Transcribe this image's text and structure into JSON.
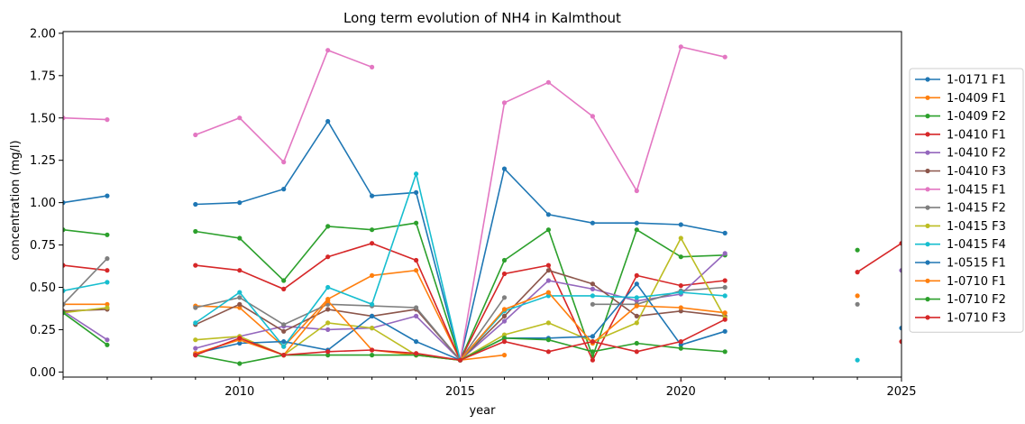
{
  "chart_data": {
    "type": "line",
    "title": "Long term evolution of NH4 in Kalmthout",
    "xlabel": "year",
    "ylabel": "concentration (mg/l)",
    "xlim": [
      2006,
      2025
    ],
    "ylim": [
      -0.03,
      2.01
    ],
    "x_ticks": [
      2010,
      2015,
      2020,
      2025
    ],
    "y_ticks": [
      "0.00",
      "0.25",
      "0.50",
      "0.75",
      "1.00",
      "1.25",
      "1.50",
      "1.75",
      "2.00"
    ],
    "y_tick_values": [
      0,
      0.25,
      0.5,
      0.75,
      1.0,
      1.25,
      1.5,
      1.75,
      2.0
    ],
    "grid": false,
    "legend_position": "right",
    "series": [
      {
        "name": "1-0171 F1",
        "color": "#1f77b4",
        "x": [
          2006,
          2007,
          2009,
          2010,
          2011,
          2012,
          2013,
          2014,
          2015,
          2016,
          2017,
          2018,
          2019,
          2020,
          2021
        ],
        "y": [
          1.0,
          1.04,
          0.99,
          1.0,
          1.08,
          1.48,
          1.04,
          1.06,
          0.07,
          1.2,
          0.93,
          0.88,
          0.88,
          0.87,
          0.82
        ]
      },
      {
        "name": "1-0409 F1",
        "color": "#ff7f0e",
        "x": [
          2006,
          2007,
          2009,
          2010,
          2011,
          2012,
          2013,
          2014,
          2015,
          2016
        ],
        "y": [
          0.4,
          0.4,
          0.39,
          0.38,
          0.15,
          0.43,
          0.57,
          0.6,
          0.07,
          0.1
        ]
      },
      {
        "name": "1-0409 F2",
        "color": "#2ca02c",
        "x": [
          2006,
          2007,
          2009,
          2010,
          2011,
          2012,
          2013,
          2014,
          2015,
          2016,
          2017,
          2018,
          2019,
          2020,
          2021,
          2024
        ],
        "y": [
          0.84,
          0.81,
          0.83,
          0.79,
          0.54,
          0.86,
          0.84,
          0.88,
          0.07,
          0.66,
          0.84,
          0.09,
          0.84,
          0.68,
          0.69,
          0.72
        ]
      },
      {
        "name": "1-0410 F1",
        "color": "#d62728",
        "x": [
          2006,
          2007,
          2009,
          2010,
          2011,
          2012,
          2013,
          2014,
          2015,
          2016,
          2017,
          2018,
          2019,
          2020,
          2021,
          2024,
          2025
        ],
        "y": [
          0.63,
          0.6,
          0.63,
          0.6,
          0.49,
          0.68,
          0.76,
          0.66,
          0.07,
          0.58,
          0.63,
          0.07,
          0.57,
          0.51,
          0.54,
          0.59,
          0.76
        ]
      },
      {
        "name": "1-0410 F2",
        "color": "#9467bd",
        "x": [
          2006,
          2007,
          2009,
          2010,
          2011,
          2012,
          2013,
          2014,
          2015,
          2016,
          2017,
          2018,
          2019,
          2020,
          2021,
          2025
        ],
        "y": [
          0.36,
          0.19,
          0.14,
          0.21,
          0.27,
          0.25,
          0.26,
          0.33,
          0.07,
          0.3,
          0.54,
          0.49,
          0.42,
          0.46,
          0.7,
          0.6
        ]
      },
      {
        "name": "1-0410 F3",
        "color": "#8c564b",
        "x": [
          2006,
          2007,
          2009,
          2010,
          2011,
          2012,
          2013,
          2014,
          2015,
          2016,
          2017,
          2018,
          2019,
          2020,
          2021
        ],
        "y": [
          0.36,
          0.37,
          0.28,
          0.4,
          0.24,
          0.37,
          0.33,
          0.37,
          0.07,
          0.33,
          0.6,
          0.52,
          0.33,
          0.36,
          0.33
        ]
      },
      {
        "name": "1-0415 F1",
        "color": "#e377c2",
        "x": [
          2006,
          2007,
          2009,
          2010,
          2011,
          2012,
          2013,
          2015,
          2016,
          2017,
          2018,
          2019,
          2020,
          2021
        ],
        "y": [
          1.5,
          1.49,
          1.4,
          1.5,
          1.24,
          1.9,
          1.8,
          0.07,
          1.59,
          1.71,
          1.51,
          1.07,
          1.92,
          1.86
        ]
      },
      {
        "name": "1-0415 F2",
        "color": "#7f7f7f",
        "x": [
          2006,
          2007,
          2009,
          2010,
          2011,
          2012,
          2013,
          2014,
          2015,
          2016,
          2018,
          2019,
          2020,
          2021,
          2024
        ],
        "y": [
          0.4,
          0.67,
          0.38,
          0.44,
          0.28,
          0.4,
          0.39,
          0.38,
          0.07,
          0.44,
          0.4,
          0.4,
          0.48,
          0.5,
          0.4
        ]
      },
      {
        "name": "1-0415 F3",
        "color": "#bcbd22",
        "x": [
          2006,
          2007,
          2009,
          2010,
          2011,
          2012,
          2013,
          2014,
          2015,
          2016,
          2017,
          2018,
          2019,
          2020,
          2021
        ],
        "y": [
          0.35,
          0.38,
          0.19,
          0.21,
          0.1,
          0.29,
          0.26,
          0.1,
          0.07,
          0.22,
          0.29,
          0.18,
          0.29,
          0.79,
          0.32
        ]
      },
      {
        "name": "1-0415 F4",
        "color": "#17becf",
        "x": [
          2006,
          2007,
          2009,
          2010,
          2011,
          2012,
          2013,
          2014,
          2015,
          2016,
          2017,
          2018,
          2019,
          2020,
          2021,
          2024
        ],
        "y": [
          0.48,
          0.53,
          0.29,
          0.47,
          0.15,
          0.5,
          0.4,
          1.17,
          0.07,
          0.36,
          0.45,
          0.45,
          0.44,
          0.47,
          0.45,
          0.07
        ]
      },
      {
        "name": "1-0515 F1",
        "color": "#1f77b4",
        "x": [
          2009,
          2010,
          2011,
          2012,
          2013,
          2014,
          2015,
          2016,
          2017,
          2018,
          2019,
          2020,
          2021,
          2025
        ],
        "y": [
          0.11,
          0.17,
          0.18,
          0.13,
          0.33,
          0.18,
          0.07,
          0.2,
          0.2,
          0.21,
          0.52,
          0.16,
          0.24,
          0.26
        ]
      },
      {
        "name": "1-0710 F1",
        "color": "#ff7f0e",
        "x": [
          2009,
          2010,
          2011,
          2012,
          2013,
          2014,
          2015,
          2016,
          2017,
          2018,
          2019,
          2020,
          2021,
          2024
        ],
        "y": [
          0.11,
          0.19,
          0.1,
          0.42,
          0.13,
          0.1,
          0.07,
          0.37,
          0.47,
          0.17,
          0.39,
          0.38,
          0.35,
          0.45
        ]
      },
      {
        "name": "1-0710 F2",
        "color": "#2ca02c",
        "x": [
          2006,
          2007,
          2009,
          2010,
          2011,
          2012,
          2013,
          2014,
          2015,
          2016,
          2017,
          2018,
          2019,
          2020,
          2021
        ],
        "y": [
          0.35,
          0.16,
          0.1,
          0.05,
          0.1,
          0.1,
          0.1,
          0.1,
          0.07,
          0.2,
          0.19,
          0.12,
          0.17,
          0.14,
          0.12
        ]
      },
      {
        "name": "1-0710 F3",
        "color": "#d62728",
        "x": [
          2009,
          2010,
          2011,
          2012,
          2013,
          2014,
          2015,
          2016,
          2017,
          2018,
          2019,
          2020,
          2021,
          2025
        ],
        "y": [
          0.1,
          0.2,
          0.1,
          0.12,
          0.13,
          0.11,
          0.07,
          0.18,
          0.12,
          0.18,
          0.12,
          0.18,
          0.31,
          0.18
        ]
      }
    ]
  }
}
